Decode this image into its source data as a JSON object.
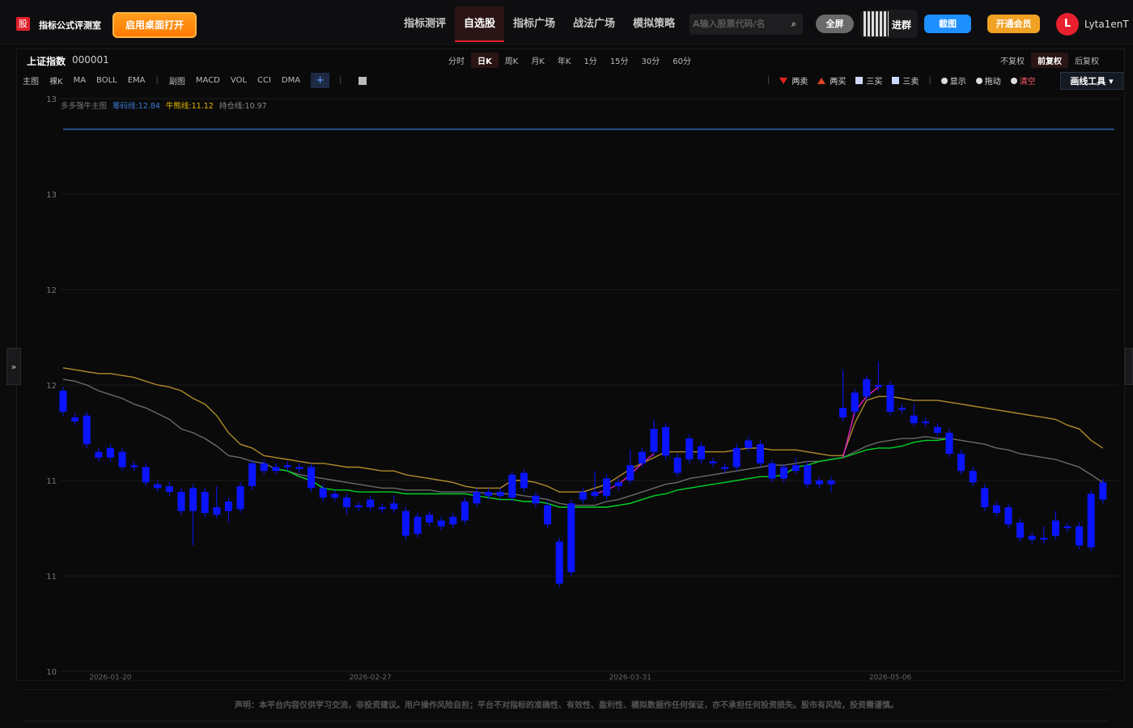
{
  "header": {
    "logo": "股",
    "site_name": "指标公式评测室",
    "desktop_button": "启用桌面打开",
    "nav": [
      "指标测评",
      "自选股",
      "指标广场",
      "战法广场",
      "模拟策略"
    ],
    "search_placeholder": "A输入股票代码/名",
    "fullscreen": "全屏",
    "group": "进群",
    "screenshot": "截图",
    "vip": "开通会员",
    "avatar": "L",
    "username": "Lyta1enT"
  },
  "toolbar": {
    "index_name": "上证指数",
    "index_code": "000001",
    "periods": [
      "分时",
      "日K",
      "周K",
      "月K",
      "年K",
      "1分",
      "15分",
      "30分",
      "60分"
    ],
    "adjust": [
      "不复权",
      "前复权",
      "后复权"
    ],
    "main_label": "主图",
    "main_items": [
      "裸K",
      "MA",
      "BOLL",
      "EMA"
    ],
    "sub_label": "副图",
    "sub_items": [
      "MACD",
      "VOL",
      "CCI",
      "DMA"
    ],
    "add": "+",
    "signals": [
      "两卖",
      "两买",
      "三买",
      "三卖"
    ],
    "actions": [
      "显示",
      "拖动",
      "清空"
    ],
    "draw_tools": "画线工具"
  },
  "chart_data": {
    "type": "candlestick",
    "legend_title": "多多强牛主图",
    "indicators": [
      {
        "label": "筹码线:",
        "value": 12.84,
        "color": "#3a7bd5",
        "line": true
      },
      {
        "label": "牛熊线:",
        "value": 11.12,
        "color": "#e6b800"
      },
      {
        "label": "持仓线:",
        "value": 10.97,
        "color": "#8a8a8a"
      }
    ],
    "categories": [
      null,
      null,
      null,
      null,
      "2026-01-20",
      null,
      null,
      null,
      null,
      null,
      null,
      null,
      null,
      null,
      null,
      null,
      null,
      null,
      null,
      null,
      null,
      null,
      null,
      null,
      null,
      null,
      "2026-02-27",
      null,
      null,
      null,
      null,
      null,
      null,
      null,
      null,
      null,
      null,
      null,
      null,
      null,
      null,
      null,
      null,
      null,
      null,
      null,
      null,
      null,
      "2026-03-31",
      null,
      null,
      null,
      null,
      null,
      null,
      null,
      null,
      null,
      null,
      null,
      null,
      null,
      null,
      null,
      null,
      null,
      null,
      null,
      null,
      null,
      "2026-05-06",
      null,
      null,
      null,
      null,
      null,
      null,
      null,
      null,
      null,
      null,
      null,
      null,
      null,
      null,
      null,
      null,
      null,
      null
    ],
    "open": [
      11.47,
      11.33,
      11.34,
      11.15,
      11.12,
      11.15,
      11.08,
      11.07,
      10.98,
      10.97,
      10.94,
      10.84,
      10.94,
      10.86,
      10.84,
      10.85,
      10.97,
      11.09,
      11.07,
      11.07,
      11.07,
      11.07,
      10.96,
      10.93,
      10.91,
      10.87,
      10.86,
      10.86,
      10.85,
      10.84,
      10.72,
      10.78,
      10.79,
      10.77,
      10.79,
      10.88,
      10.92,
      10.94,
      10.91,
      10.96,
      10.92,
      10.87,
      10.68,
      10.52,
      10.9,
      10.92,
      10.92,
      10.99,
      11.0,
      11.09,
      11.15,
      11.28,
      11.12,
      11.11,
      11.18,
      11.1,
      11.07,
      11.07,
      11.17,
      11.19,
      11.09,
      11.01,
      11.05,
      11.08,
      10.98,
      11.0,
      11.33,
      11.36,
      11.44,
      11.5,
      11.5,
      11.38,
      11.34,
      11.31,
      11.28,
      11.25,
      11.14,
      11.05,
      10.96,
      10.87,
      10.86,
      10.78,
      10.71,
      10.69,
      10.71,
      10.76,
      10.76,
      10.65,
      10.9
    ],
    "close": [
      11.36,
      11.31,
      11.19,
      11.12,
      11.17,
      11.07,
      11.07,
      10.99,
      10.96,
      10.94,
      10.84,
      10.96,
      10.83,
      10.82,
      10.89,
      10.97,
      11.09,
      11.05,
      11.05,
      11.08,
      11.06,
      10.96,
      10.91,
      10.91,
      10.86,
      10.86,
      10.9,
      10.85,
      10.88,
      10.71,
      10.81,
      10.82,
      10.76,
      10.81,
      10.89,
      10.94,
      10.94,
      10.92,
      11.03,
      11.04,
      10.88,
      10.77,
      10.46,
      10.88,
      10.94,
      10.94,
      11.01,
      10.97,
      11.08,
      11.15,
      11.27,
      11.13,
      11.04,
      11.22,
      11.11,
      11.09,
      11.06,
      11.17,
      11.21,
      11.09,
      11.01,
      11.07,
      11.08,
      10.98,
      11.0,
      10.98,
      11.38,
      11.46,
      11.53,
      11.49,
      11.36,
      11.37,
      11.3,
      11.3,
      11.25,
      11.14,
      11.05,
      10.99,
      10.86,
      10.83,
      10.77,
      10.7,
      10.69,
      10.7,
      10.79,
      10.75,
      10.66,
      10.93,
      10.99
    ],
    "high": [
      11.49,
      11.35,
      11.36,
      11.17,
      11.19,
      11.17,
      11.1,
      11.09,
      11.0,
      10.99,
      10.96,
      10.98,
      10.96,
      10.97,
      10.91,
      10.99,
      11.11,
      11.11,
      11.09,
      11.1,
      11.09,
      11.09,
      10.98,
      10.95,
      10.93,
      10.89,
      10.92,
      10.88,
      10.92,
      10.86,
      10.83,
      10.84,
      10.81,
      10.83,
      10.91,
      10.96,
      10.96,
      10.96,
      11.05,
      11.06,
      10.94,
      10.89,
      10.7,
      10.9,
      10.96,
      11.05,
      11.03,
      11.01,
      11.16,
      11.17,
      11.32,
      11.3,
      11.14,
      11.24,
      11.2,
      11.12,
      11.09,
      11.19,
      11.23,
      11.21,
      11.11,
      11.09,
      11.12,
      11.1,
      11.02,
      11.02,
      11.58,
      11.48,
      11.55,
      11.62,
      11.52,
      11.4,
      11.4,
      11.33,
      11.3,
      11.27,
      11.16,
      11.07,
      10.98,
      10.89,
      10.88,
      10.8,
      10.73,
      10.76,
      10.84,
      10.78,
      10.78,
      10.95,
      11.01
    ],
    "low": [
      11.34,
      11.29,
      11.17,
      11.1,
      11.1,
      11.05,
      11.05,
      10.97,
      10.94,
      10.92,
      10.82,
      10.66,
      10.81,
      10.8,
      10.78,
      10.83,
      10.95,
      11.03,
      11.03,
      11.05,
      11.04,
      10.94,
      10.89,
      10.89,
      10.82,
      10.84,
      10.84,
      10.83,
      10.83,
      10.69,
      10.7,
      10.76,
      10.74,
      10.75,
      10.77,
      10.86,
      10.9,
      10.9,
      10.89,
      10.94,
      10.86,
      10.75,
      10.44,
      10.5,
      10.88,
      10.9,
      10.9,
      10.95,
      10.98,
      11.07,
      11.13,
      11.11,
      11.02,
      11.09,
      11.09,
      11.07,
      11.04,
      11.05,
      11.15,
      11.07,
      10.99,
      10.99,
      11.03,
      10.96,
      10.96,
      10.94,
      11.31,
      11.34,
      11.42,
      11.47,
      11.34,
      11.35,
      11.28,
      11.28,
      11.23,
      11.12,
      11.03,
      10.97,
      10.84,
      10.81,
      10.75,
      10.68,
      10.67,
      10.67,
      10.69,
      10.73,
      10.64,
      10.63,
      10.88
    ],
    "candle_color": "#0a14ff",
    "lines": [
      {
        "color": "#b08a2a",
        "values": [
          11.59,
          11.58,
          11.57,
          11.56,
          11.56,
          11.55,
          11.54,
          11.52,
          11.5,
          11.49,
          11.47,
          11.43,
          11.4,
          11.34,
          11.25,
          11.19,
          11.17,
          11.13,
          11.12,
          11.11,
          11.1,
          11.09,
          11.09,
          11.08,
          11.07,
          11.07,
          11.06,
          11.05,
          11.05,
          11.03,
          11.02,
          11.01,
          11.0,
          10.99,
          10.97,
          10.96,
          10.96,
          10.96,
          11.0,
          11.0,
          10.99,
          10.97,
          10.94,
          10.94,
          10.94,
          10.96,
          10.98,
          11.02,
          11.06,
          11.09,
          11.12,
          11.15,
          11.15,
          11.15,
          11.15,
          11.15,
          11.15,
          11.16,
          11.17,
          11.17,
          11.16,
          11.16,
          11.16,
          11.15,
          11.14,
          11.13,
          11.13,
          11.3,
          11.42,
          11.44,
          11.44,
          11.43,
          11.42,
          11.42,
          11.42,
          11.41,
          11.4,
          11.39,
          11.38,
          11.37,
          11.36,
          11.35,
          11.34,
          11.33,
          11.32,
          11.29,
          11.27,
          11.21,
          11.17
        ]
      },
      {
        "color": "#6a6a6a",
        "values": [
          11.53,
          11.52,
          11.5,
          11.47,
          11.45,
          11.43,
          11.4,
          11.38,
          11.35,
          11.32,
          11.27,
          11.25,
          11.22,
          11.18,
          11.13,
          11.12,
          11.1,
          11.09,
          11.06,
          11.05,
          11.03,
          11.02,
          11.01,
          11.0,
          10.99,
          10.98,
          10.97,
          10.96,
          10.96,
          10.95,
          10.95,
          10.95,
          10.94,
          10.94,
          10.94,
          10.94,
          10.93,
          10.93,
          10.93,
          10.92,
          10.91,
          10.9,
          10.88,
          10.87,
          10.87,
          10.87,
          10.89,
          10.9,
          10.92,
          10.94,
          10.96,
          10.98,
          10.99,
          11.01,
          11.02,
          11.03,
          11.04,
          11.05,
          11.06,
          11.07,
          11.08,
          11.08,
          11.09,
          11.1,
          11.1,
          11.11,
          11.12,
          11.15,
          11.18,
          11.2,
          11.21,
          11.22,
          11.22,
          11.23,
          11.22,
          11.22,
          11.21,
          11.2,
          11.19,
          11.17,
          11.16,
          11.14,
          11.13,
          11.12,
          11.11,
          11.09,
          11.07,
          11.03,
          10.99
        ]
      },
      {
        "color": "#00d424",
        "values": [
          null,
          null,
          null,
          null,
          null,
          null,
          null,
          null,
          null,
          null,
          null,
          null,
          null,
          null,
          null,
          null,
          null,
          null,
          11.06,
          11.05,
          11.02,
          11.0,
          10.96,
          10.95,
          10.95,
          10.94,
          10.94,
          10.94,
          10.94,
          10.93,
          10.93,
          10.93,
          10.93,
          10.93,
          10.93,
          10.92,
          10.91,
          10.9,
          10.9,
          10.89,
          10.89,
          10.88,
          10.86,
          10.86,
          10.86,
          10.86,
          10.86,
          10.87,
          10.88,
          10.9,
          10.92,
          10.93,
          10.95,
          10.96,
          10.97,
          10.98,
          10.99,
          11.0,
          11.01,
          11.02,
          11.02,
          11.03,
          11.07,
          11.08,
          11.1,
          11.11,
          11.12,
          11.14,
          11.16,
          11.17,
          11.17,
          11.18,
          11.2,
          11.21,
          11.21,
          11.22,
          null,
          null,
          null,
          null,
          null,
          null,
          null,
          null,
          null,
          null,
          null,
          null,
          null
        ]
      },
      {
        "color": "#e020c8",
        "values": [
          null,
          null,
          null,
          null,
          null,
          null,
          null,
          null,
          null,
          null,
          null,
          null,
          null,
          null,
          null,
          null,
          null,
          null,
          null,
          null,
          null,
          null,
          null,
          null,
          null,
          null,
          null,
          null,
          null,
          null,
          null,
          null,
          null,
          null,
          null,
          null,
          null,
          null,
          null,
          null,
          null,
          null,
          null,
          null,
          null,
          10.93,
          10.95,
          10.98,
          11.03,
          11.09,
          11.14,
          null,
          null,
          null,
          null,
          null,
          null,
          null,
          null,
          null,
          null,
          null,
          null,
          null,
          null,
          null,
          11.12,
          11.36,
          11.44,
          11.49,
          null,
          null,
          null,
          null,
          null,
          null,
          null,
          null,
          null,
          null,
          null,
          null,
          null,
          null,
          null,
          null,
          null,
          null,
          null
        ]
      }
    ],
    "ylim": [
      10,
      13
    ],
    "yticks": [
      10,
      {
        "value": 10.5,
        "label": "11"
      },
      11,
      {
        "value": 11.5,
        "label": "12"
      },
      12,
      {
        "value": 12.5,
        "label": "13"
      },
      13
    ],
    "grid": true
  },
  "footer": "声明：本平台内容仅供学习交流，非投资建议。用户操作风险自担；平台不对指标的准确性、有效性、盈利性、模拟数据作任何保证，亦不承担任何投资损失。股市有风险，投资需谨慎。"
}
